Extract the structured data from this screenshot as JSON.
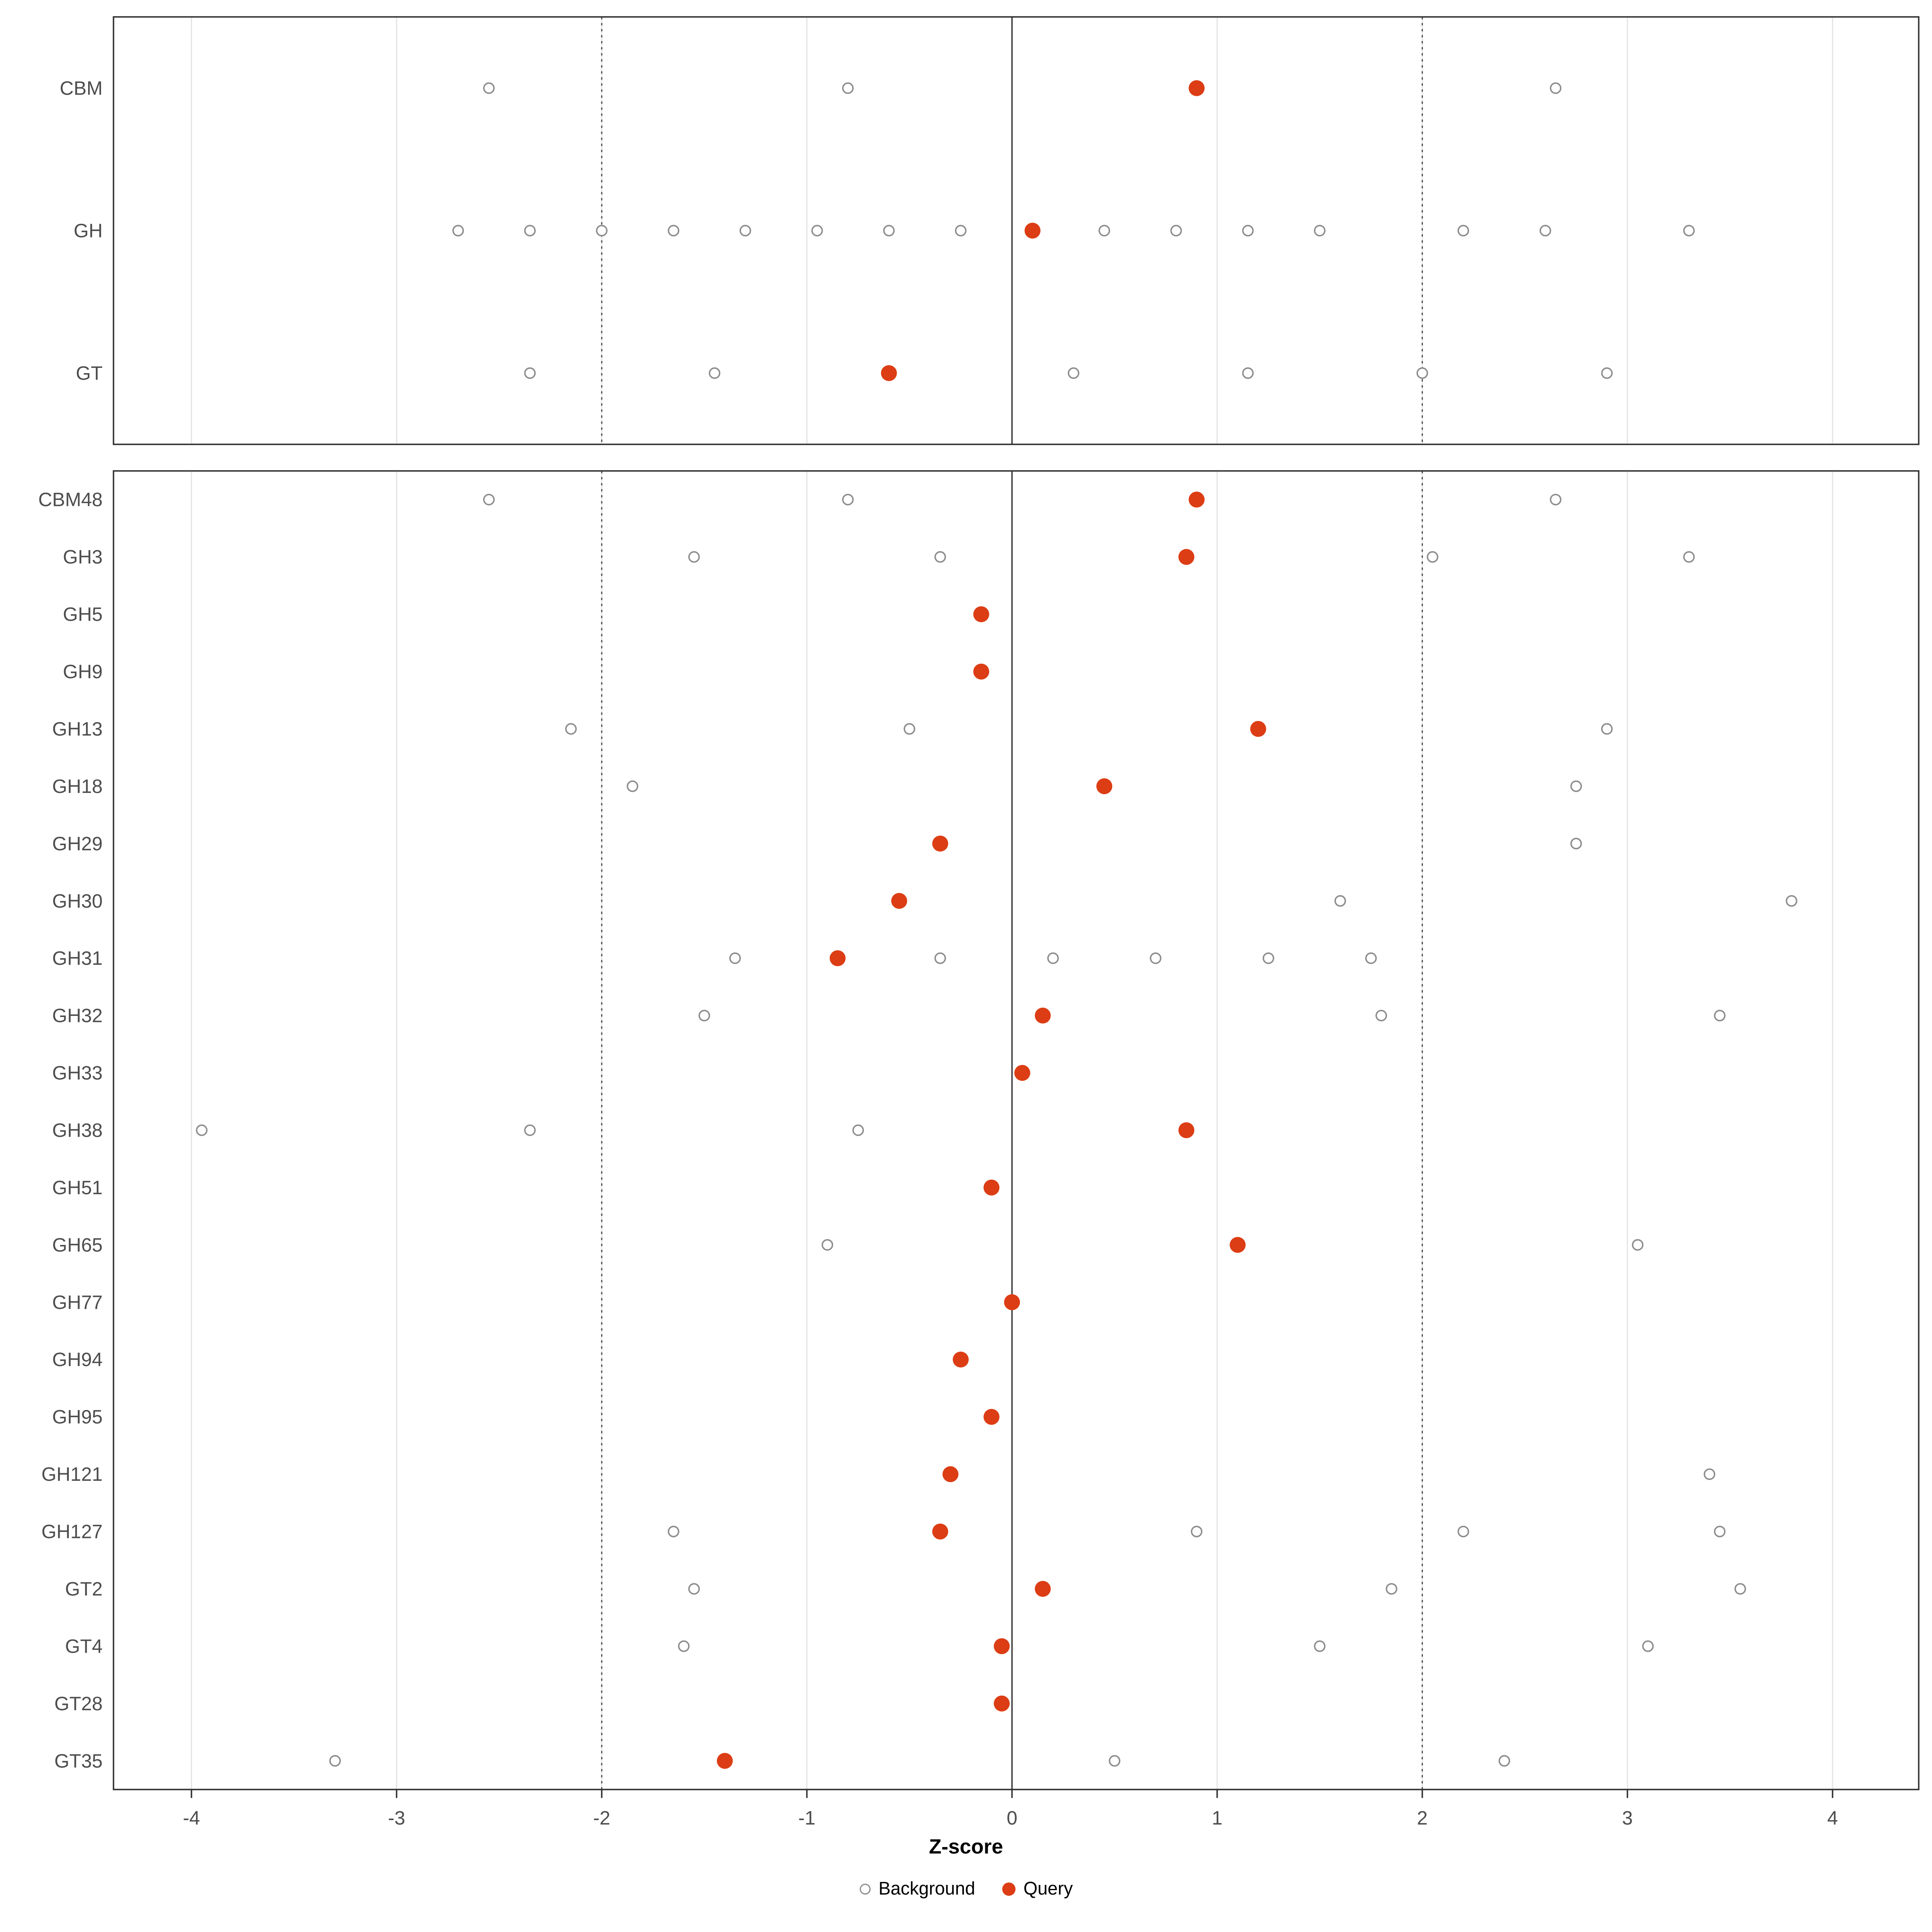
{
  "chart_data": {
    "type": "scatter",
    "title": "",
    "xlabel": "Z-score",
    "xlim": [
      -4.38,
      4.42
    ],
    "x_ticks": [
      -4,
      -3,
      -2,
      -1,
      0,
      1,
      2,
      3,
      4
    ],
    "reference_lines": {
      "solid": [
        0
      ],
      "dotted": [
        -2,
        2
      ]
    },
    "legend": [
      {
        "label": "Background",
        "marker": "open-circle"
      },
      {
        "label": "Query",
        "marker": "filled-circle"
      }
    ],
    "colors": {
      "query": "#DC3D14",
      "background_fill": "#FFFFFF",
      "background_stroke": "#8C8C8C",
      "grid": "#E4E4E4",
      "ref_line": "#4A4A4A",
      "border": "#333333",
      "axis_text": "#4D4D4D",
      "title_text": "#000000"
    },
    "panels": [
      {
        "name": "class-summary",
        "rows": [
          {
            "label": "CBM",
            "query": 0.9,
            "background": [
              -2.55,
              -0.8,
              2.65
            ]
          },
          {
            "label": "GH",
            "query": 0.1,
            "background": [
              -2.7,
              -2.35,
              -2.0,
              -1.65,
              -1.3,
              -0.95,
              -0.6,
              -0.25,
              0.45,
              0.8,
              1.15,
              1.5,
              2.2,
              2.6,
              3.3
            ]
          },
          {
            "label": "GT",
            "query": -0.6,
            "background": [
              -2.35,
              -1.45,
              0.3,
              1.15,
              2.0,
              2.9
            ]
          }
        ]
      },
      {
        "name": "family-detail",
        "rows": [
          {
            "label": "CBM48",
            "query": 0.9,
            "background": [
              -2.55,
              -0.8,
              2.65
            ]
          },
          {
            "label": "GH3",
            "query": 0.85,
            "background": [
              -1.55,
              -0.35,
              2.05,
              3.3
            ]
          },
          {
            "label": "GH5",
            "query": -0.15,
            "background": []
          },
          {
            "label": "GH9",
            "query": -0.15,
            "background": []
          },
          {
            "label": "GH13",
            "query": 1.2,
            "background": [
              -2.15,
              -0.5,
              2.9
            ]
          },
          {
            "label": "GH18",
            "query": 0.45,
            "background": [
              -1.85,
              2.75
            ]
          },
          {
            "label": "GH29",
            "query": -0.35,
            "background": [
              2.75
            ]
          },
          {
            "label": "GH30",
            "query": -0.55,
            "background": [
              1.6,
              3.8
            ]
          },
          {
            "label": "GH31",
            "query": -0.85,
            "background": [
              -1.35,
              -0.35,
              0.2,
              0.7,
              1.25,
              1.75
            ]
          },
          {
            "label": "GH32",
            "query": 0.15,
            "background": [
              -1.5,
              1.8,
              3.45
            ]
          },
          {
            "label": "GH33",
            "query": 0.05,
            "background": []
          },
          {
            "label": "GH38",
            "query": 0.85,
            "background": [
              -3.95,
              -2.35,
              -0.75
            ]
          },
          {
            "label": "GH51",
            "query": -0.1,
            "background": []
          },
          {
            "label": "GH65",
            "query": 1.1,
            "background": [
              -0.9,
              3.05
            ]
          },
          {
            "label": "GH77",
            "query": 0.0,
            "background": []
          },
          {
            "label": "GH94",
            "query": -0.25,
            "background": []
          },
          {
            "label": "GH95",
            "query": -0.1,
            "background": []
          },
          {
            "label": "GH121",
            "query": -0.3,
            "background": [
              3.4
            ]
          },
          {
            "label": "GH127",
            "query": -0.35,
            "background": [
              -1.65,
              0.9,
              2.2,
              3.45
            ]
          },
          {
            "label": "GT2",
            "query": 0.15,
            "background": [
              -1.55,
              1.85,
              3.55
            ]
          },
          {
            "label": "GT4",
            "query": -0.05,
            "background": [
              -1.6,
              1.5,
              3.1
            ]
          },
          {
            "label": "GT28",
            "query": -0.05,
            "background": []
          },
          {
            "label": "GT35",
            "query": -1.4,
            "background": [
              -3.3,
              0.5,
              2.4
            ]
          }
        ]
      }
    ]
  }
}
